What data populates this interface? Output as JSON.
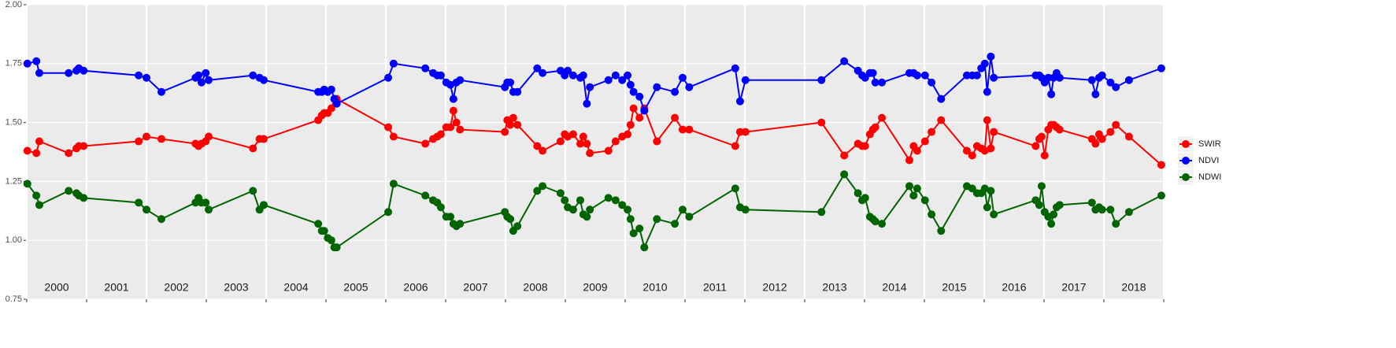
{
  "chart_data": {
    "type": "line",
    "x": [
      2000.01,
      2000.16,
      2000.21,
      2000.7,
      2000.83,
      2000.87,
      2000.95,
      2001.87,
      2002.0,
      2002.25,
      2002.82,
      2002.87,
      2002.92,
      2002.99,
      2003.04,
      2003.78,
      2003.89,
      2003.96,
      2004.87,
      2004.93,
      2004.97,
      2005.03,
      2005.09,
      2005.14,
      2005.18,
      2006.04,
      2006.13,
      2006.66,
      2006.79,
      2006.86,
      2006.92,
      2007.01,
      2007.08,
      2007.13,
      2007.18,
      2007.24,
      2007.99,
      2008.03,
      2008.08,
      2008.13,
      2008.2,
      2008.53,
      2008.62,
      2008.92,
      2008.99,
      2009.04,
      2009.13,
      2009.25,
      2009.3,
      2009.36,
      2009.41,
      2009.72,
      2009.84,
      2009.95,
      2010.04,
      2010.09,
      2010.14,
      2010.24,
      2010.32,
      2010.53,
      2010.83,
      2010.96,
      2011.07,
      2011.84,
      2011.92,
      2012.01,
      2013.28,
      2013.66,
      2013.89,
      2013.96,
      2014.01,
      2014.09,
      2014.14,
      2014.18,
      2014.29,
      2014.75,
      2014.82,
      2014.88,
      2015.01,
      2015.12,
      2015.28,
      2015.71,
      2015.8,
      2015.88,
      2015.95,
      2016.01,
      2016.05,
      2016.11,
      2016.16,
      2016.86,
      2016.92,
      2016.96,
      2017.01,
      2017.07,
      2017.12,
      2017.16,
      2017.21,
      2017.26,
      2017.8,
      2017.86,
      2017.92,
      2017.97,
      2018.11,
      2018.2,
      2018.42,
      2018.96
    ],
    "series": [
      {
        "name": "SWIR",
        "color": "#ff0000",
        "values": [
          1.38,
          1.37,
          1.42,
          1.37,
          1.39,
          1.4,
          1.4,
          1.42,
          1.44,
          1.43,
          1.41,
          1.4,
          1.41,
          1.42,
          1.44,
          1.39,
          1.43,
          1.43,
          1.51,
          1.53,
          1.54,
          1.54,
          1.56,
          1.6,
          1.6,
          1.48,
          1.44,
          1.41,
          1.43,
          1.44,
          1.45,
          1.48,
          1.48,
          1.55,
          1.5,
          1.47,
          1.46,
          1.51,
          1.49,
          1.52,
          1.49,
          1.4,
          1.38,
          1.42,
          1.45,
          1.44,
          1.45,
          1.41,
          1.44,
          1.41,
          1.37,
          1.38,
          1.42,
          1.44,
          1.45,
          1.49,
          1.56,
          1.52,
          1.56,
          1.42,
          1.52,
          1.47,
          1.47,
          1.4,
          1.46,
          1.46,
          1.5,
          1.36,
          1.41,
          1.4,
          1.4,
          1.45,
          1.47,
          1.48,
          1.52,
          1.34,
          1.4,
          1.38,
          1.42,
          1.46,
          1.51,
          1.38,
          1.36,
          1.4,
          1.39,
          1.38,
          1.51,
          1.39,
          1.46,
          1.4,
          1.43,
          1.44,
          1.36,
          1.47,
          1.49,
          1.49,
          1.48,
          1.47,
          1.43,
          1.41,
          1.45,
          1.43,
          1.46,
          1.49,
          1.44,
          1.32
        ]
      },
      {
        "name": "NDVI",
        "color": "#0000ff",
        "values": [
          1.75,
          1.76,
          1.71,
          1.71,
          1.72,
          1.73,
          1.72,
          1.7,
          1.69,
          1.63,
          1.69,
          1.7,
          1.67,
          1.71,
          1.68,
          1.7,
          1.69,
          1.68,
          1.63,
          1.63,
          1.64,
          1.63,
          1.64,
          1.6,
          1.58,
          1.69,
          1.75,
          1.73,
          1.71,
          1.7,
          1.7,
          1.67,
          1.66,
          1.6,
          1.67,
          1.68,
          1.65,
          1.67,
          1.67,
          1.63,
          1.63,
          1.73,
          1.71,
          1.72,
          1.7,
          1.72,
          1.7,
          1.69,
          1.7,
          1.58,
          1.65,
          1.68,
          1.7,
          1.68,
          1.7,
          1.66,
          1.63,
          1.61,
          1.55,
          1.65,
          1.63,
          1.69,
          1.65,
          1.73,
          1.59,
          1.68,
          1.68,
          1.76,
          1.72,
          1.7,
          1.69,
          1.71,
          1.71,
          1.67,
          1.67,
          1.71,
          1.71,
          1.7,
          1.7,
          1.67,
          1.6,
          1.7,
          1.7,
          1.7,
          1.73,
          1.75,
          1.63,
          1.78,
          1.69,
          1.7,
          1.7,
          1.69,
          1.67,
          1.69,
          1.62,
          1.69,
          1.71,
          1.69,
          1.68,
          1.62,
          1.69,
          1.7,
          1.67,
          1.65,
          1.68,
          1.73
        ]
      },
      {
        "name": "NDWI",
        "color": "#006400",
        "values": [
          1.24,
          1.19,
          1.15,
          1.21,
          1.2,
          1.19,
          1.18,
          1.16,
          1.13,
          1.09,
          1.16,
          1.18,
          1.16,
          1.16,
          1.13,
          1.21,
          1.13,
          1.15,
          1.07,
          1.04,
          1.04,
          1.01,
          1.0,
          0.97,
          0.97,
          1.12,
          1.24,
          1.19,
          1.17,
          1.16,
          1.14,
          1.1,
          1.1,
          1.07,
          1.06,
          1.07,
          1.12,
          1.1,
          1.09,
          1.04,
          1.06,
          1.21,
          1.23,
          1.2,
          1.17,
          1.14,
          1.13,
          1.17,
          1.11,
          1.1,
          1.13,
          1.18,
          1.17,
          1.15,
          1.13,
          1.09,
          1.03,
          1.05,
          0.97,
          1.09,
          1.07,
          1.13,
          1.1,
          1.22,
          1.14,
          1.13,
          1.12,
          1.28,
          1.2,
          1.17,
          1.18,
          1.1,
          1.09,
          1.08,
          1.07,
          1.23,
          1.19,
          1.22,
          1.17,
          1.11,
          1.04,
          1.23,
          1.22,
          1.2,
          1.2,
          1.22,
          1.14,
          1.21,
          1.11,
          1.17,
          1.15,
          1.23,
          1.12,
          1.1,
          1.07,
          1.11,
          1.14,
          1.15,
          1.16,
          1.13,
          1.14,
          1.13,
          1.13,
          1.07,
          1.12,
          1.19
        ]
      }
    ],
    "xlim": [
      2000,
      2019
    ],
    "xticks": [
      2000,
      2001,
      2002,
      2003,
      2004,
      2005,
      2006,
      2007,
      2008,
      2009,
      2010,
      2011,
      2012,
      2013,
      2014,
      2015,
      2016,
      2017,
      2018,
      2019
    ],
    "year_labels": [
      "2000",
      "2001",
      "2002",
      "2003",
      "2004",
      "2005",
      "2006",
      "2007",
      "2008",
      "2009",
      "2010",
      "2011",
      "2012",
      "2013",
      "2014",
      "2015",
      "2016",
      "2017",
      "2018"
    ],
    "ylim": [
      0.75,
      2
    ],
    "yticks": [
      0.75,
      {
        "value": 1,
        "label": "1.00"
      },
      1.25,
      {
        "value": 1.5,
        "label": "1.50"
      },
      1.75,
      {
        "value": 2,
        "label": "2.00"
      }
    ],
    "grid": true,
    "legend": "right"
  }
}
